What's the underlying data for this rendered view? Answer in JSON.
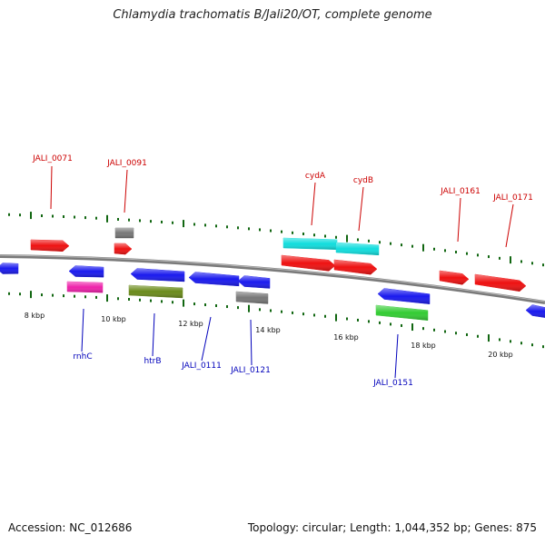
{
  "title": "Chlamydia trachomatis B/Jali20/OT, complete genome",
  "footer": {
    "accession": "Accession: NC_012686",
    "summary": "Topology: circular; Length: 1,044,352 bp; Genes: 875"
  },
  "colors": {
    "red": "#ee1111",
    "blue": "#1a1aee",
    "gray": "#777777",
    "magenta": "#ee22aa",
    "olive": "#6a8a1a",
    "cyan": "#11dddd",
    "green": "#33cc33",
    "tick": "#116611",
    "backbone": "#808080",
    "label_red": "#cc0000",
    "label_blue": "#0000bb"
  },
  "scale_labels": [
    "8 kbp",
    "10 kbp",
    "12 kbp",
    "14 kbp",
    "16 kbp",
    "18 kbp",
    "20 kbp"
  ],
  "gene_labels_top": [
    "JALI_0071",
    "JALI_0091",
    "cydA",
    "cydB",
    "JALI_0161",
    "JALI_0171"
  ],
  "gene_labels_bottom": [
    "rnhC",
    "htrB",
    "JALI_0111",
    "JALI_0121",
    "JALI_0151"
  ]
}
